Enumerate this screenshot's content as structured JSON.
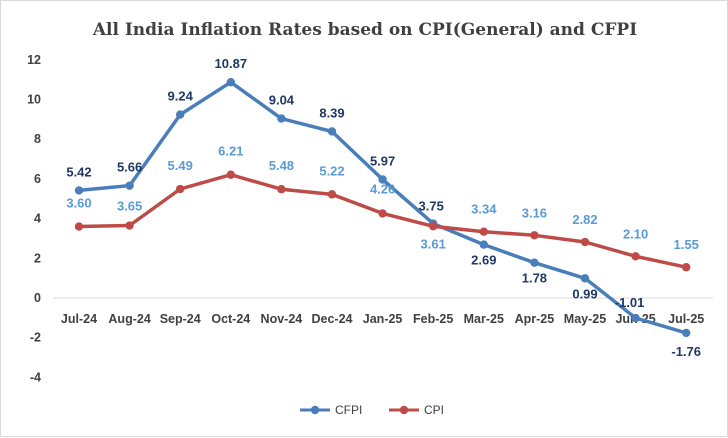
{
  "chart_data": {
    "type": "line",
    "title": "All India Inflation Rates based on CPI(General) and CFPI",
    "categories": [
      "Jul-24",
      "Aug-24",
      "Sep-24",
      "Oct-24",
      "Nov-24",
      "Dec-24",
      "Jan-25",
      "Feb-25",
      "Mar-25",
      "Apr-25",
      "May-25",
      "Jun-25",
      "Jul-25"
    ],
    "series": [
      {
        "name": "CFPI",
        "color": "#4a7ebb",
        "label_color": "#1f3864",
        "values": [
          5.42,
          5.66,
          9.24,
          10.87,
          9.04,
          8.39,
          5.97,
          3.75,
          2.69,
          1.78,
          0.99,
          -1.01,
          -1.76
        ],
        "labels": [
          "5.42",
          "5.66",
          "9.24",
          "10.87",
          "9.04",
          "8.39",
          "5.97",
          "3.75",
          "2.69",
          "1.78",
          "0.99",
          "-1.01",
          "-1.76"
        ]
      },
      {
        "name": "CPI",
        "color": "#be4b48",
        "label_color": "#5b9bd5",
        "values": [
          3.6,
          3.65,
          5.49,
          6.21,
          5.48,
          5.22,
          4.26,
          3.61,
          3.34,
          3.16,
          2.82,
          2.1,
          1.55
        ],
        "labels": [
          "3.60",
          "3.65",
          "5.49",
          "6.21",
          "5.48",
          "5.22",
          "4.26",
          "3.61",
          "3.34",
          "3.16",
          "2.82",
          "2.10",
          "1.55"
        ]
      }
    ],
    "y_ticks": [
      "12",
      "10",
      "8",
      "6",
      "4",
      "2",
      "0",
      "-2",
      "-4"
    ],
    "ylim": [
      -4,
      12
    ],
    "xlabel": "",
    "ylabel": "",
    "grid": false,
    "legend": "bottom-center"
  }
}
